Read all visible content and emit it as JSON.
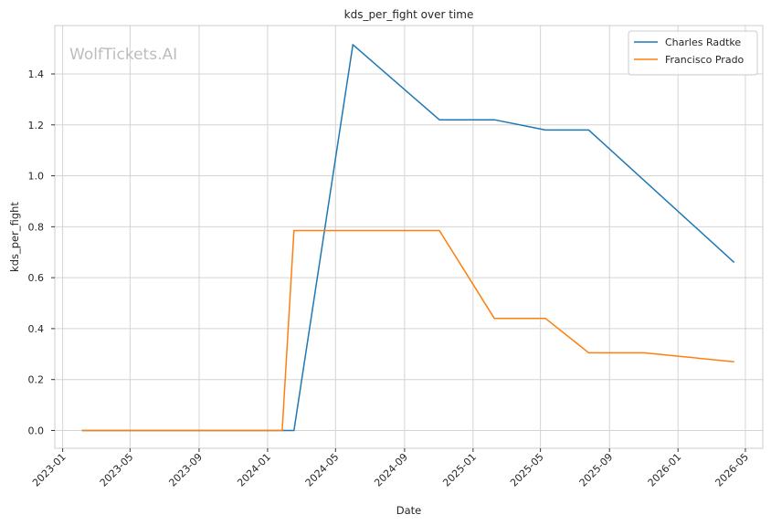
{
  "watermark": "WolfTickets.AI",
  "chart_data": {
    "type": "line",
    "title": "kds_per_fight over time",
    "xlabel": "Date",
    "ylabel": "kds_per_fight",
    "x_ticks": [
      "2023-01",
      "2023-05",
      "2023-09",
      "2024-01",
      "2024-05",
      "2024-09",
      "2025-01",
      "2025-05",
      "2025-09",
      "2026-01",
      "2026-05"
    ],
    "y_ticks": [
      "0.0",
      "0.2",
      "0.4",
      "0.6",
      "0.8",
      "1.0",
      "1.2",
      "1.4"
    ],
    "xlim": [
      "2022-12-18",
      "2026-06-01"
    ],
    "ylim": [
      -0.07,
      1.59
    ],
    "grid": true,
    "legend_position": "top-right",
    "series": [
      {
        "name": "Charles Radtke",
        "color": "#1f77b4",
        "points": [
          {
            "x": "2023-02-04",
            "y": 0.0
          },
          {
            "x": "2024-02-17",
            "y": 0.0
          },
          {
            "x": "2024-06-01",
            "y": 1.515
          },
          {
            "x": "2024-11-02",
            "y": 1.22
          },
          {
            "x": "2025-02-08",
            "y": 1.22
          },
          {
            "x": "2025-05-10",
            "y": 1.18
          },
          {
            "x": "2025-07-26",
            "y": 1.18
          },
          {
            "x": "2026-04-11",
            "y": 0.66
          }
        ]
      },
      {
        "name": "Francisco Prado",
        "color": "#ff7f0e",
        "points": [
          {
            "x": "2023-02-04",
            "y": 0.0
          },
          {
            "x": "2024-01-27",
            "y": 0.0
          },
          {
            "x": "2024-02-17",
            "y": 0.785
          },
          {
            "x": "2024-11-02",
            "y": 0.785
          },
          {
            "x": "2025-02-08",
            "y": 0.44
          },
          {
            "x": "2025-05-10",
            "y": 0.44
          },
          {
            "x": "2025-07-26",
            "y": 0.305
          },
          {
            "x": "2025-11-01",
            "y": 0.305
          },
          {
            "x": "2026-04-11",
            "y": 0.27
          }
        ]
      }
    ]
  }
}
